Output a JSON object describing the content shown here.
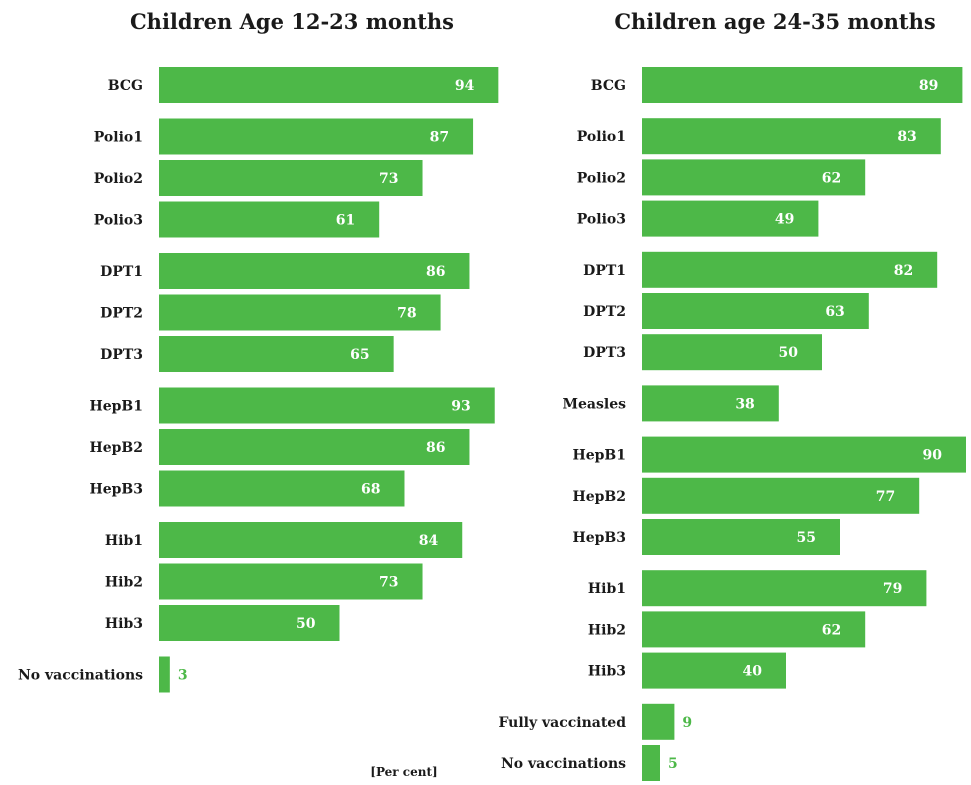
{
  "colors": {
    "bar": "#4db848",
    "text": "#1a1a1a",
    "label_inside": "#ffffff"
  },
  "note": "[Per cent]",
  "chart_data": [
    {
      "type": "bar",
      "orientation": "horizontal",
      "title": "Children Age 12-23 months",
      "unit": "Per cent",
      "xlim": [
        0,
        100
      ],
      "categories": [
        "BCG",
        "Polio1",
        "Polio2",
        "Polio3",
        "DPT1",
        "DPT2",
        "DPT3",
        "HepB1",
        "HepB2",
        "HepB3",
        "Hib1",
        "Hib2",
        "Hib3",
        "No vaccinations"
      ],
      "values": [
        94,
        87,
        73,
        61,
        86,
        78,
        65,
        93,
        86,
        68,
        84,
        73,
        50,
        3
      ],
      "groups": [
        [
          0
        ],
        [
          1,
          2,
          3
        ],
        [
          4,
          5,
          6
        ],
        [
          7,
          8,
          9
        ],
        [
          10,
          11,
          12
        ],
        [
          13
        ]
      ],
      "grid": false,
      "legend": "none"
    },
    {
      "type": "bar",
      "orientation": "horizontal",
      "title": "Children age 24-35 months",
      "unit": "Per cent",
      "xlim": [
        0,
        100
      ],
      "categories": [
        "BCG",
        "Polio1",
        "Polio2",
        "Polio3",
        "DPT1",
        "DPT2",
        "DPT3",
        "Measles",
        "HepB1",
        "HepB2",
        "HepB3",
        "Hib1",
        "Hib2",
        "Hib3",
        "Fully vaccinated",
        "No vaccinations"
      ],
      "values": [
        89,
        83,
        62,
        49,
        82,
        63,
        50,
        38,
        90,
        77,
        55,
        79,
        62,
        40,
        9,
        5
      ],
      "groups": [
        [
          0
        ],
        [
          1,
          2,
          3
        ],
        [
          4,
          5,
          6
        ],
        [
          7
        ],
        [
          8,
          9,
          10
        ],
        [
          11,
          12,
          13
        ],
        [
          14,
          15
        ]
      ],
      "grid": false,
      "legend": "none"
    }
  ]
}
